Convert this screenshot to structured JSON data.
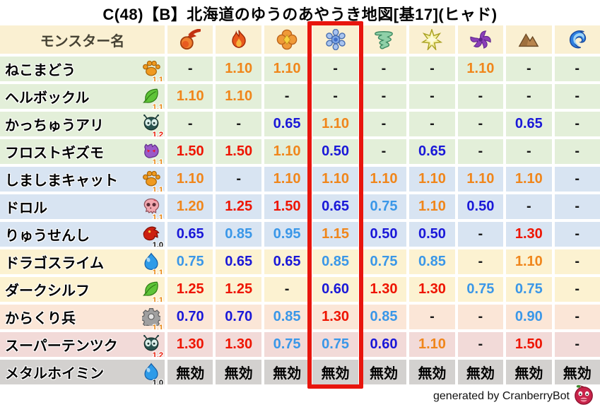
{
  "title": "C(48)【B】北海道のゆうのあやうき地図[基17](ヒャド)",
  "chart_data": {
    "type": "table",
    "title": "C(48)【B】北海道のゆうのあやうき地図[基17](ヒャド)",
    "name_column_header": "モンスター名",
    "element_columns": [
      {
        "icon": "fireball-icon"
      },
      {
        "icon": "flame-icon"
      },
      {
        "icon": "explosion-icon"
      },
      {
        "icon": "snowflake-icon"
      },
      {
        "icon": "tornado-icon"
      },
      {
        "icon": "spark-icon"
      },
      {
        "icon": "pinwheel-icon"
      },
      {
        "icon": "mountain-icon"
      },
      {
        "icon": "wave-icon"
      }
    ],
    "highlighted_column_index": 3,
    "rows": [
      {
        "name": "ねこまどう",
        "type_icon": "paw-icon",
        "type_multiplier": "1.1",
        "multiplier_color": "#E8820A",
        "bg": "#E3EFD9",
        "values": [
          "-",
          "1.10",
          "1.10",
          "-",
          "-",
          "-",
          "1.10",
          "-",
          "-"
        ]
      },
      {
        "name": "ヘルボックル",
        "type_icon": "leaf-icon",
        "type_multiplier": "1.1",
        "multiplier_color": "#E8820A",
        "bg": "#E3EFD9",
        "values": [
          "1.10",
          "1.10",
          "-",
          "-",
          "-",
          "-",
          "-",
          "-",
          "-"
        ]
      },
      {
        "name": "かっちゅうアリ",
        "type_icon": "bug-icon",
        "type_multiplier": "1.2",
        "multiplier_color": "#E81400",
        "bg": "#E3EFD9",
        "values": [
          "-",
          "-",
          "0.65",
          "1.10",
          "-",
          "-",
          "-",
          "0.65",
          "-"
        ]
      },
      {
        "name": "フロストギズモ",
        "type_icon": "gizmo-icon",
        "type_multiplier": "1.1",
        "multiplier_color": "#E8820A",
        "bg": "#E3EFD9",
        "values": [
          "1.50",
          "1.50",
          "1.10",
          "0.50",
          "-",
          "0.65",
          "-",
          "-",
          "-"
        ]
      },
      {
        "name": "しましまキャット",
        "type_icon": "paw-icon",
        "type_multiplier": "1.1",
        "multiplier_color": "#E8820A",
        "bg": "#D8E4F2",
        "values": [
          "1.10",
          "-",
          "1.10",
          "1.10",
          "1.10",
          "1.10",
          "1.10",
          "1.10",
          "-"
        ]
      },
      {
        "name": "ドロル",
        "type_icon": "skull-icon",
        "type_multiplier": "1.1",
        "multiplier_color": "#E8820A",
        "bg": "#D8E4F2",
        "values": [
          "1.20",
          "1.25",
          "1.50",
          "0.65",
          "0.75",
          "1.10",
          "0.50",
          "-",
          "-"
        ]
      },
      {
        "name": "りゅうせんし",
        "type_icon": "dragon-icon",
        "type_multiplier": "1.0",
        "multiplier_color": "#111111",
        "bg": "#D8E4F2",
        "values": [
          "0.65",
          "0.85",
          "0.95",
          "1.15",
          "0.50",
          "0.50",
          "-",
          "1.30",
          "-"
        ]
      },
      {
        "name": "ドラゴスライム",
        "type_icon": "slime-icon",
        "type_multiplier": "1.1",
        "multiplier_color": "#E8820A",
        "bg": "#FCF2D1",
        "values": [
          "0.75",
          "0.65",
          "0.65",
          "0.85",
          "0.75",
          "0.85",
          "-",
          "1.10",
          "-"
        ]
      },
      {
        "name": "ダークシルフ",
        "type_icon": "leaf-icon",
        "type_multiplier": "1.1",
        "multiplier_color": "#E8820A",
        "bg": "#FCF2D1",
        "values": [
          "1.25",
          "1.25",
          "-",
          "0.60",
          "1.30",
          "1.30",
          "0.75",
          "0.75",
          "-"
        ]
      },
      {
        "name": "からくり兵",
        "type_icon": "gear-icon",
        "type_multiplier": "1.1",
        "multiplier_color": "#E8820A",
        "bg": "#FBE6D7",
        "values": [
          "0.70",
          "0.70",
          "0.85",
          "1.30",
          "0.85",
          "-",
          "-",
          "0.90",
          "-"
        ]
      },
      {
        "name": "スーパーテンツク",
        "type_icon": "bug-icon",
        "type_multiplier": "1.2",
        "multiplier_color": "#E81400",
        "bg": "#F2DAD8",
        "values": [
          "1.30",
          "1.30",
          "0.75",
          "0.75",
          "0.60",
          "1.10",
          "-",
          "1.50",
          "-"
        ]
      },
      {
        "name": "メタルホイミン",
        "type_icon": "slime-icon",
        "type_multiplier": "1.0",
        "multiplier_color": "#111111",
        "bg": "#D3D1CF",
        "values": [
          "無効",
          "無効",
          "無効",
          "無効",
          "無効",
          "無効",
          "無効",
          "無効",
          "無効"
        ]
      }
    ]
  },
  "colors": {
    "header_bg": "#FAF0D2",
    "value_red": "#EE1400",
    "value_orange": "#F0861B",
    "value_light_blue": "#3A97E8",
    "value_dark_blue": "#1A18D8",
    "value_neutral": "#1A1A1A",
    "immune_text": "#000000",
    "highlight_box": "#E8150D"
  },
  "footer": {
    "credit": "generated by CranberryBot",
    "bot_icon": "cranberry-icon"
  }
}
